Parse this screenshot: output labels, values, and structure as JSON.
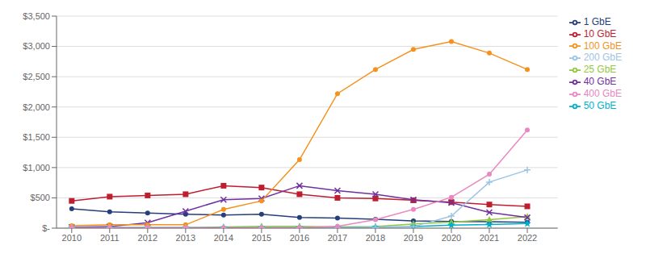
{
  "chart_data": {
    "type": "line",
    "x": [
      2010,
      2011,
      2012,
      2013,
      2014,
      2015,
      2016,
      2017,
      2018,
      2019,
      2020,
      2021,
      2022
    ],
    "xlim": [
      2009.6,
      2022.8
    ],
    "xticks": [
      2010,
      2011,
      2012,
      2013,
      2014,
      2015,
      2016,
      2017,
      2018,
      2019,
      2020,
      2021,
      2022
    ],
    "ylim": [
      0,
      3500
    ],
    "yticks": [
      {
        "value": 0,
        "label": "$-"
      },
      {
        "value": 500,
        "label": "$500"
      },
      {
        "value": 1000,
        "label": "$1,000"
      },
      {
        "value": 1500,
        "label": "$1,500"
      },
      {
        "value": 2000,
        "label": "$2,000"
      },
      {
        "value": 2500,
        "label": "$2,500"
      },
      {
        "value": 3000,
        "label": "$3,000"
      },
      {
        "value": 3500,
        "label": "$3,500"
      }
    ],
    "grid": "y",
    "legend": "right",
    "series": [
      {
        "name": "1 GbE",
        "color": "#243f7a",
        "marker": "circle",
        "values": [
          320,
          270,
          250,
          230,
          215,
          230,
          175,
          165,
          145,
          120,
          110,
          105,
          95
        ]
      },
      {
        "name": "10 GbE",
        "color": "#be1e2d",
        "marker": "square",
        "values": [
          450,
          520,
          540,
          560,
          700,
          670,
          560,
          500,
          490,
          460,
          430,
          390,
          360
        ]
      },
      {
        "name": "25 GbE",
        "color": "#92c83e",
        "marker": "triangle",
        "values": [
          5,
          5,
          5,
          5,
          20,
          30,
          30,
          20,
          25,
          70,
          100,
          140,
          190
        ]
      },
      {
        "name": "40 GbE",
        "color": "#7030a0",
        "marker": "x",
        "values": [
          15,
          25,
          90,
          280,
          470,
          490,
          700,
          620,
          560,
          470,
          420,
          260,
          175
        ]
      },
      {
        "name": "50 GbE",
        "color": "#00b0c8",
        "marker": "star",
        "values": [
          5,
          5,
          5,
          5,
          5,
          5,
          5,
          5,
          15,
          25,
          50,
          60,
          75
        ]
      },
      {
        "name": "100 GbE",
        "color": "#f5921e",
        "marker": "circle",
        "values": [
          40,
          55,
          55,
          55,
          310,
          450,
          1130,
          2220,
          2620,
          2950,
          3080,
          2890,
          2620
        ]
      },
      {
        "name": "200 GbE",
        "color": "#9dc3e6",
        "marker": "plus",
        "values": [
          5,
          5,
          5,
          5,
          5,
          5,
          5,
          5,
          15,
          25,
          200,
          760,
          960
        ]
      },
      {
        "name": "400 GbE",
        "color": "#e887c0",
        "marker": "circle",
        "values": [
          5,
          5,
          5,
          5,
          5,
          5,
          5,
          30,
          140,
          310,
          510,
          890,
          1620
        ]
      }
    ]
  }
}
